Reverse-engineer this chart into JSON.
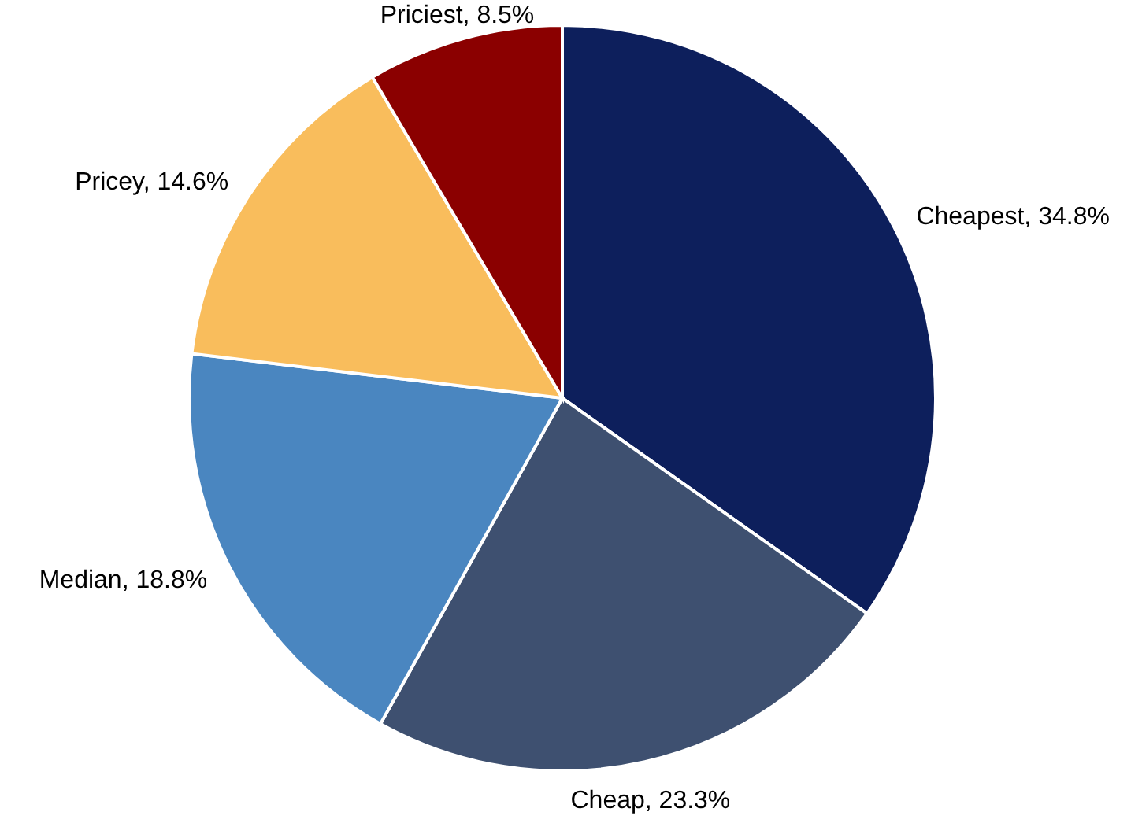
{
  "chart_data": {
    "type": "pie",
    "categories": [
      "Cheapest",
      "Cheap",
      "Median",
      "Pricey",
      "Priciest"
    ],
    "values": [
      34.8,
      23.3,
      18.8,
      14.6,
      8.5
    ],
    "value_labels": [
      "34.8%",
      "23.3%",
      "18.8%",
      "14.6%",
      "8.5%"
    ],
    "colors": [
      "#0d1f5c",
      "#3e5070",
      "#4a86c0",
      "#f9bd5c",
      "#8b0000"
    ]
  }
}
